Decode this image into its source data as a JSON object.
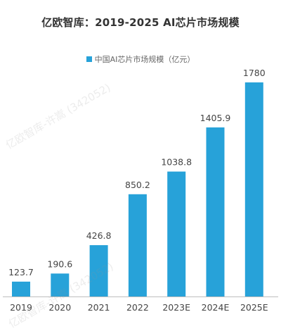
{
  "chart_data": {
    "type": "bar",
    "title": "亿欧智库：2019-2025 AI芯片市场规模",
    "xlabel": "",
    "ylabel": "",
    "categories": [
      "2019",
      "2020",
      "2021",
      "2022",
      "2023E",
      "2024E",
      "2025E"
    ],
    "series": [
      {
        "name": "中国AI芯片市场规模（亿元）",
        "values": [
          123.7,
          190.6,
          426.8,
          850.2,
          1038.8,
          1405.9,
          1780
        ]
      }
    ],
    "value_labels": [
      "123.7",
      "190.6",
      "426.8",
      "850.2",
      "1038.8",
      "1405.9",
      "1780"
    ],
    "ylim": [
      0,
      1780
    ],
    "grid": false,
    "legend_position": "top-center",
    "bar_color": "#27A2D9",
    "axis_color": "#BFBFBF"
  },
  "watermark": "亿欧智库-许嵩 (342052)"
}
